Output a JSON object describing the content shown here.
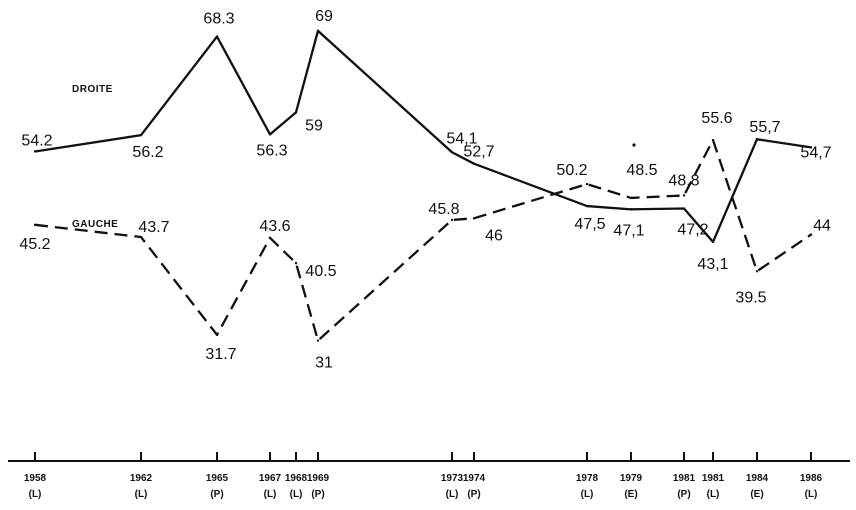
{
  "chart_data": {
    "type": "line",
    "title": "",
    "xlabel": "",
    "ylabel": "",
    "ylim": [
      30,
      70
    ],
    "grid": false,
    "ticks": [
      {
        "year": "1958",
        "type": "(L)"
      },
      {
        "year": "1962",
        "type": "(L)"
      },
      {
        "year": "1965",
        "type": "(P)"
      },
      {
        "year": "1967",
        "type": "(L)"
      },
      {
        "year": "1968",
        "type": "(L)"
      },
      {
        "year": "1969",
        "type": "(P)"
      },
      {
        "year": "1973",
        "type": "(L)"
      },
      {
        "year": "1974",
        "type": "(P)"
      },
      {
        "year": "1978",
        "type": "(L)"
      },
      {
        "year": "1979",
        "type": "(E)"
      },
      {
        "year": "1981",
        "type": "(P)"
      },
      {
        "year": "1981",
        "type": "(L)"
      },
      {
        "year": "1984",
        "type": "(E)"
      },
      {
        "year": "1986",
        "type": "(L)"
      }
    ],
    "series": [
      {
        "name": "DROITE",
        "style": "solid",
        "values": [
          54.2,
          56.2,
          68.3,
          56.3,
          59,
          69,
          54.1,
          52.7,
          47.5,
          47.1,
          47.2,
          43.1,
          55.7,
          54.7
        ],
        "labels": [
          "54.2",
          "56.2",
          "68.3",
          "56.3",
          "59",
          "69",
          "54,1",
          "52,7",
          "47,5",
          "47,1",
          "47,2",
          "43,1",
          "55,7",
          "54,7"
        ]
      },
      {
        "name": "GAUCHE",
        "style": "dashed",
        "values": [
          45.2,
          43.7,
          31.7,
          43.6,
          40.5,
          31,
          45.8,
          46,
          50.2,
          48.5,
          48.8,
          55.6,
          39.5,
          44
        ],
        "labels": [
          "45.2",
          "43.7",
          "31.7",
          "43.6",
          "40.5",
          "31",
          "45.8",
          "46",
          "50.2",
          "48.5",
          "48.8",
          "55.6",
          "39.5",
          "44"
        ]
      }
    ]
  }
}
